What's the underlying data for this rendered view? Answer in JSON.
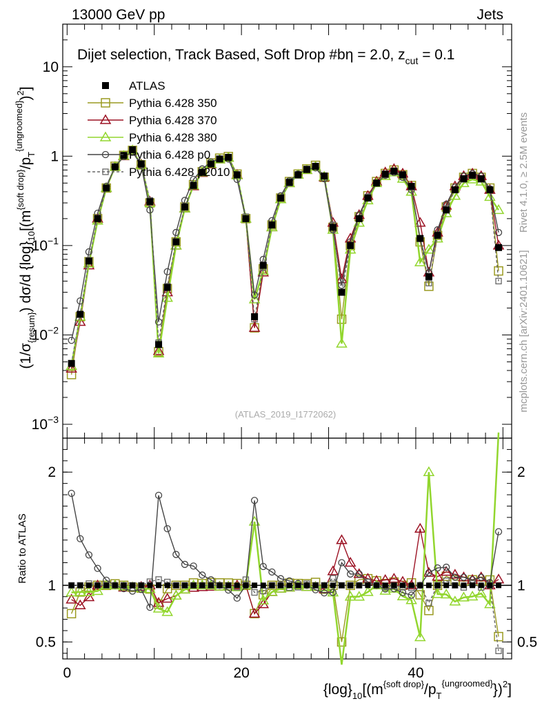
{
  "header": {
    "energy": "13000 GeV pp",
    "process": "Jets"
  },
  "side_labels": {
    "rivet": "Rivet 4.1.0, ≥ 2.5M events",
    "source": "mcplots.cern.ch [arXiv:2401.10621]"
  },
  "colors": {
    "atlas": "#000000",
    "p350": "#9a9a20",
    "p370": "#9b1022",
    "p380": "#92d62e",
    "p0": "#444444",
    "p2010": "#666666",
    "refline": "#000000"
  },
  "chart_data": [
    {
      "type": "scatter",
      "panel": "main",
      "title": "Dijet selection, Track Based, Soft Drop #bη = 2.0, z_cut = 0.1",
      "title_parts": {
        "lead": "Dijet selection, Track Based, Soft Drop #b",
        "eta": "η = 2.0, z",
        "cut": "cut",
        "tail": " = 0.1"
      },
      "watermark": "(ATLAS_2019_I1772062)",
      "ylabel": "(1/σ_{resum}) dσ/d {log}_10[(m^{soft drop}/p_T^{ungroomed})^2]",
      "ylabel_parts": {
        "a": "(1/σ",
        "b": "{resum}",
        "c": ") dσ/d {log}",
        "d": "10",
        "e": "[(m",
        "f": "{soft drop}",
        "g": "/p",
        "h": "T",
        "i": "{ungroomed}",
        "j": ")",
        "k": "2",
        "l": "]"
      },
      "y_scale": "log",
      "ylim": [
        0.0007,
        30
      ],
      "y_ticks": [
        {
          "value": 0.001,
          "base": "10",
          "exp": "−3"
        },
        {
          "value": 0.01,
          "base": "10",
          "exp": "−2"
        },
        {
          "value": 0.1,
          "base": "10",
          "exp": "−1"
        },
        {
          "value": 1,
          "label": "1"
        },
        {
          "value": 10,
          "label": "10"
        }
      ],
      "x": [
        0.5,
        1.5,
        2.5,
        3.5,
        4.5,
        5.5,
        6.5,
        7.5,
        8.5,
        9.5,
        10.5,
        11.5,
        12.5,
        13.5,
        14.5,
        15.5,
        16.5,
        17.5,
        18.5,
        19.5,
        20.5,
        21.5,
        22.5,
        23.5,
        24.5,
        25.5,
        26.5,
        27.5,
        28.5,
        29.5,
        30.5,
        31.5,
        32.5,
        33.5,
        34.5,
        35.5,
        36.5,
        37.5,
        38.5,
        39.5,
        40.5,
        41.5,
        42.5,
        43.5,
        44.5,
        45.5,
        46.5,
        47.5,
        48.5,
        49.5
      ],
      "series": [
        {
          "name": "ATLAS",
          "key": "atlas",
          "marker": "square-filled",
          "line": "none",
          "values": [
            0.0048,
            0.017,
            0.067,
            0.2,
            0.44,
            0.76,
            1.02,
            1.18,
            0.82,
            0.31,
            0.0078,
            0.034,
            0.11,
            0.27,
            0.47,
            0.66,
            0.82,
            0.93,
            0.97,
            0.62,
            0.2,
            0.016,
            0.06,
            0.17,
            0.34,
            0.51,
            0.62,
            0.71,
            0.77,
            0.6,
            0.16,
            0.03,
            0.1,
            0.2,
            0.34,
            0.5,
            0.63,
            0.68,
            0.62,
            0.46,
            0.12,
            0.045,
            0.13,
            0.25,
            0.42,
            0.56,
            0.61,
            0.56,
            0.42,
            0.095
          ]
        },
        {
          "name": "Pythia 6.428 350",
          "key": "p350",
          "marker": "square-open",
          "line": "solid",
          "values": [
            0.0036,
            0.016,
            0.066,
            0.2,
            0.44,
            0.77,
            1.02,
            1.16,
            0.8,
            0.3,
            0.0065,
            0.033,
            0.11,
            0.27,
            0.48,
            0.67,
            0.84,
            0.95,
            0.99,
            0.63,
            0.2,
            0.012,
            0.055,
            0.17,
            0.34,
            0.52,
            0.63,
            0.72,
            0.79,
            0.58,
            0.16,
            0.015,
            0.1,
            0.21,
            0.36,
            0.52,
            0.64,
            0.7,
            0.62,
            0.47,
            0.11,
            0.035,
            0.13,
            0.27,
            0.44,
            0.58,
            0.64,
            0.58,
            0.44,
            0.052
          ]
        },
        {
          "name": "Pythia 6.428 370",
          "key": "p370",
          "marker": "triangle-open",
          "line": "solid",
          "values": [
            0.0042,
            0.014,
            0.06,
            0.2,
            0.44,
            0.76,
            1.0,
            1.16,
            0.81,
            0.31,
            0.0066,
            0.03,
            0.1,
            0.26,
            0.46,
            0.65,
            0.81,
            0.92,
            0.96,
            0.62,
            0.2,
            0.012,
            0.05,
            0.16,
            0.33,
            0.5,
            0.62,
            0.7,
            0.76,
            0.58,
            0.18,
            0.042,
            0.12,
            0.22,
            0.36,
            0.52,
            0.66,
            0.72,
            0.64,
            0.46,
            0.18,
            0.05,
            0.14,
            0.28,
            0.46,
            0.6,
            0.64,
            0.6,
            0.42,
            0.1
          ]
        },
        {
          "name": "Pythia 6.428 380",
          "key": "p380",
          "marker": "triangle-open",
          "line": "solid",
          "values": [
            0.0045,
            0.016,
            0.063,
            0.19,
            0.44,
            0.76,
            1.01,
            1.16,
            0.8,
            0.3,
            0.0062,
            0.026,
            0.1,
            0.26,
            0.47,
            0.66,
            0.82,
            0.92,
            0.96,
            0.61,
            0.2,
            0.025,
            0.052,
            0.16,
            0.33,
            0.5,
            0.62,
            0.7,
            0.76,
            0.59,
            0.15,
            0.008,
            0.09,
            0.18,
            0.32,
            0.5,
            0.6,
            0.66,
            0.56,
            0.4,
            0.065,
            0.09,
            0.12,
            0.23,
            0.36,
            0.5,
            0.55,
            0.52,
            0.35,
            0.25
          ]
        },
        {
          "name": "Pythia 6.428 p0",
          "key": "p0",
          "marker": "circle-open",
          "line": "solid",
          "values": [
            0.0087,
            0.024,
            0.085,
            0.23,
            0.46,
            0.76,
            0.99,
            1.12,
            0.79,
            0.25,
            0.014,
            0.051,
            0.14,
            0.32,
            0.55,
            0.72,
            0.86,
            0.93,
            0.93,
            0.55,
            0.2,
            0.028,
            0.07,
            0.19,
            0.36,
            0.53,
            0.63,
            0.71,
            0.74,
            0.56,
            0.15,
            0.036,
            0.11,
            0.22,
            0.35,
            0.5,
            0.61,
            0.66,
            0.58,
            0.42,
            0.12,
            0.05,
            0.15,
            0.29,
            0.45,
            0.6,
            0.64,
            0.6,
            0.43,
            0.14
          ]
        },
        {
          "name": "Pythia 6.428 p2010",
          "key": "p2010",
          "marker": "square-small",
          "line": "dashed",
          "values": [
            0.0048,
            0.017,
            0.068,
            0.2,
            0.44,
            0.76,
            1.02,
            1.18,
            0.82,
            0.32,
            0.0082,
            0.035,
            0.11,
            0.27,
            0.47,
            0.66,
            0.82,
            0.93,
            0.97,
            0.61,
            0.21,
            0.015,
            0.057,
            0.17,
            0.34,
            0.5,
            0.61,
            0.72,
            0.77,
            0.6,
            0.17,
            0.03,
            0.1,
            0.2,
            0.35,
            0.5,
            0.62,
            0.68,
            0.61,
            0.45,
            0.12,
            0.038,
            0.13,
            0.26,
            0.42,
            0.55,
            0.62,
            0.55,
            0.42,
            0.04
          ]
        }
      ]
    },
    {
      "type": "scatter",
      "panel": "ratio",
      "ylabel": "Ratio to ATLAS",
      "xlabel": "{log}_10[(m^{soft drop}/p_T^{ungroomed})^2]",
      "xlabel_parts": {
        "a": "{log}",
        "b": "10",
        "c": "[(m",
        "d": "{soft drop}",
        "e": "/p",
        "f": "T",
        "g": "{ungroomed}",
        "h": "})",
        "i": "2",
        "j": "]"
      },
      "xlim": [
        -0.5,
        51
      ],
      "x_ticks": [
        0,
        20,
        40
      ],
      "x_tick_labels": [
        "0",
        "20",
        "40"
      ],
      "ylim": [
        0.35,
        2.3
      ],
      "y_ticks": [
        0.5,
        1,
        2
      ],
      "y_tick_labels": [
        "0.5",
        "1",
        "2"
      ],
      "reference": 1.0
    }
  ]
}
